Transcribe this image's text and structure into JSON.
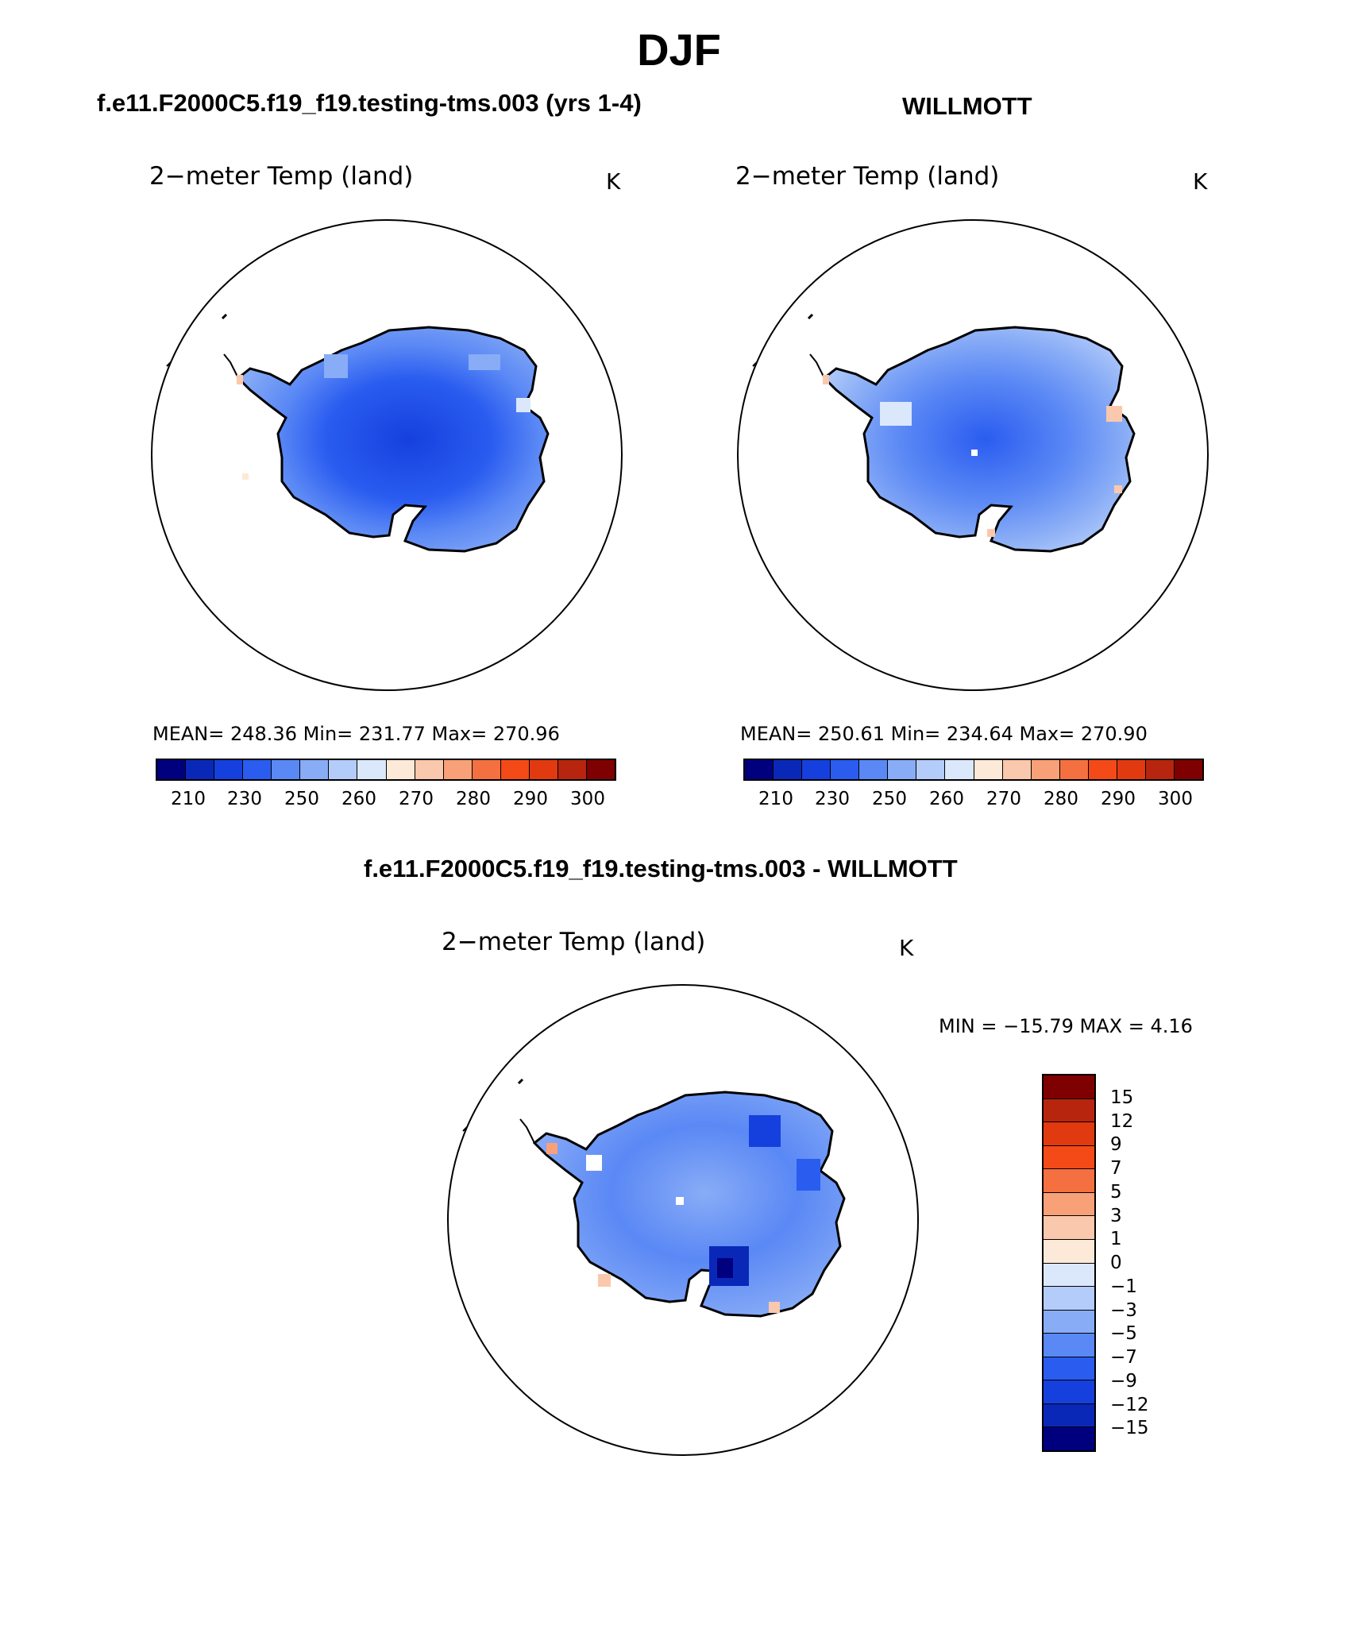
{
  "title": "DJF",
  "panels": [
    {
      "title": "f.e11.F2000C5.f19_f19.testing-tms.003 (yrs 1-4)",
      "variable": "2−meter Temp (land)",
      "units": "K",
      "stats": "MEAN= 248.36   Min= 231.77   Max= 270.96",
      "colorbar_labels": [
        "210",
        "230",
        "250",
        "260",
        "270",
        "280",
        "290",
        "300"
      ]
    },
    {
      "title": "WILLMOTT",
      "variable": "2−meter Temp (land)",
      "units": "K",
      "stats": "MEAN= 250.61   Min= 234.64   Max= 270.90",
      "colorbar_labels": [
        "210",
        "230",
        "250",
        "260",
        "270",
        "280",
        "290",
        "300"
      ]
    },
    {
      "title": "f.e11.F2000C5.f19_f19.testing-tms.003 - WILLMOTT",
      "variable": "2−meter Temp (land)",
      "units": "K",
      "stats": "MIN = −15.79 MAX =    4.16",
      "colorbar_labels": [
        "15",
        "12",
        "9",
        "7",
        "5",
        "3",
        "1",
        "0",
        "−1",
        "−3",
        "−5",
        "−7",
        "−9",
        "−12",
        "−15"
      ]
    }
  ],
  "colors": {
    "abs_scale": [
      "#00007f",
      "#0a28b8",
      "#1540dd",
      "#2a5cf0",
      "#5a88f5",
      "#88acf6",
      "#b4ccfa",
      "#dbe8fb",
      "#fde9d8",
      "#fac8ac",
      "#f8a078",
      "#f57040",
      "#f34a18",
      "#e23a10",
      "#b8250e",
      "#7f0000"
    ],
    "diff_scale": [
      "#7f0000",
      "#b8250e",
      "#e23a10",
      "#f34a18",
      "#f57040",
      "#f8a078",
      "#fac8ac",
      "#fde9d8",
      "#dbe8fb",
      "#b4ccfa",
      "#88acf6",
      "#5a88f5",
      "#2a5cf0",
      "#1540dd",
      "#0a28b8",
      "#00007f"
    ]
  }
}
